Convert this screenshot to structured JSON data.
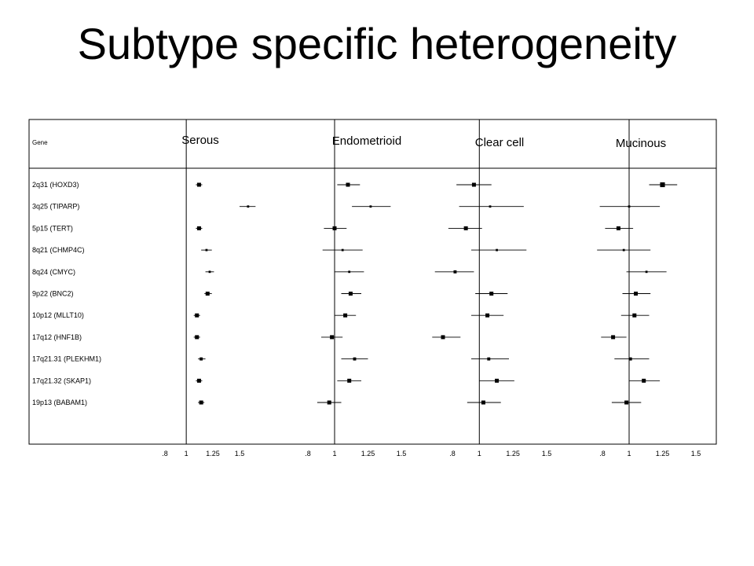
{
  "title": "Subtype specific heterogeneity",
  "chart_data": {
    "type": "forest",
    "gene_header": "Gene",
    "genes": [
      "2q31 (HOXD3)",
      "3q25 (TIPARP)",
      "5p15 (TERT)",
      "8q21 (CHMP4C)",
      "8q24 (CMYC)",
      "9p22 (BNC2)",
      "10p12 (MLLT10)",
      "17q12 (HNF1B)",
      "17q21.31 (PLEKHM1)",
      "17q21.32 (SKAP1)",
      "19p13 (BABAM1)"
    ],
    "x_ticks": [
      ".8",
      "1",
      "1.25",
      "1.5"
    ],
    "x_tick_values": [
      0.8,
      1.0,
      1.25,
      1.5
    ],
    "reference_line": 1,
    "panels": [
      {
        "name": "Serous",
        "points": [
          {
            "est": 1.12,
            "lo": 1.09,
            "hi": 1.15,
            "w": 2
          },
          {
            "est": 1.58,
            "lo": 1.5,
            "hi": 1.65,
            "w": 1
          },
          {
            "est": 1.12,
            "lo": 1.09,
            "hi": 1.15,
            "w": 2
          },
          {
            "est": 1.19,
            "lo": 1.14,
            "hi": 1.24,
            "w": 1
          },
          {
            "est": 1.22,
            "lo": 1.18,
            "hi": 1.26,
            "w": 1
          },
          {
            "est": 1.2,
            "lo": 1.17,
            "hi": 1.24,
            "w": 2
          },
          {
            "est": 1.1,
            "lo": 1.07,
            "hi": 1.13,
            "w": 2
          },
          {
            "est": 1.1,
            "lo": 1.07,
            "hi": 1.13,
            "w": 2
          },
          {
            "est": 1.14,
            "lo": 1.11,
            "hi": 1.18,
            "w": 1.5
          },
          {
            "est": 1.12,
            "lo": 1.09,
            "hi": 1.15,
            "w": 2
          },
          {
            "est": 1.14,
            "lo": 1.11,
            "hi": 1.17,
            "w": 2
          }
        ]
      },
      {
        "name": "Endometrioid",
        "points": [
          {
            "est": 1.1,
            "lo": 1.02,
            "hi": 1.19,
            "w": 2
          },
          {
            "est": 1.27,
            "lo": 1.13,
            "hi": 1.42,
            "w": 1
          },
          {
            "est": 1.0,
            "lo": 0.92,
            "hi": 1.09,
            "w": 2
          },
          {
            "est": 1.06,
            "lo": 0.91,
            "hi": 1.21,
            "w": 1
          },
          {
            "est": 1.11,
            "lo": 1.0,
            "hi": 1.22,
            "w": 1
          },
          {
            "est": 1.12,
            "lo": 1.05,
            "hi": 1.2,
            "w": 2
          },
          {
            "est": 1.08,
            "lo": 1.0,
            "hi": 1.16,
            "w": 2
          },
          {
            "est": 0.98,
            "lo": 0.9,
            "hi": 1.06,
            "w": 2
          },
          {
            "est": 1.15,
            "lo": 1.05,
            "hi": 1.25,
            "w": 1.5
          },
          {
            "est": 1.11,
            "lo": 1.02,
            "hi": 1.2,
            "w": 2
          },
          {
            "est": 0.96,
            "lo": 0.87,
            "hi": 1.05,
            "w": 2
          }
        ]
      },
      {
        "name": "Clear cell",
        "points": [
          {
            "est": 0.96,
            "lo": 0.83,
            "hi": 1.09,
            "w": 2
          },
          {
            "est": 1.08,
            "lo": 0.85,
            "hi": 1.33,
            "w": 1
          },
          {
            "est": 0.9,
            "lo": 0.77,
            "hi": 1.02,
            "w": 2
          },
          {
            "est": 1.13,
            "lo": 0.94,
            "hi": 1.35,
            "w": 1
          },
          {
            "est": 0.82,
            "lo": 0.67,
            "hi": 0.96,
            "w": 1.5
          },
          {
            "est": 1.09,
            "lo": 0.97,
            "hi": 1.21,
            "w": 2
          },
          {
            "est": 1.06,
            "lo": 0.94,
            "hi": 1.18,
            "w": 2
          },
          {
            "est": 0.73,
            "lo": 0.65,
            "hi": 0.86,
            "w": 2
          },
          {
            "est": 1.07,
            "lo": 0.94,
            "hi": 1.22,
            "w": 1.5
          },
          {
            "est": 1.13,
            "lo": 1.0,
            "hi": 1.26,
            "w": 2
          },
          {
            "est": 1.03,
            "lo": 0.91,
            "hi": 1.16,
            "w": 2
          }
        ]
      },
      {
        "name": "Mucinous",
        "points": [
          {
            "est": 1.25,
            "lo": 1.15,
            "hi": 1.36,
            "w": 2.5
          },
          {
            "est": 1.0,
            "lo": 0.78,
            "hi": 1.23,
            "w": 1
          },
          {
            "est": 0.92,
            "lo": 0.82,
            "hi": 1.03,
            "w": 2
          },
          {
            "est": 0.96,
            "lo": 0.76,
            "hi": 1.16,
            "w": 1
          },
          {
            "est": 1.13,
            "lo": 0.98,
            "hi": 1.28,
            "w": 1
          },
          {
            "est": 1.05,
            "lo": 0.95,
            "hi": 1.16,
            "w": 2
          },
          {
            "est": 1.04,
            "lo": 0.94,
            "hi": 1.15,
            "w": 2
          },
          {
            "est": 0.88,
            "lo": 0.79,
            "hi": 0.98,
            "w": 2
          },
          {
            "est": 1.01,
            "lo": 0.89,
            "hi": 1.15,
            "w": 1.5
          },
          {
            "est": 1.11,
            "lo": 1.0,
            "hi": 1.23,
            "w": 2
          },
          {
            "est": 0.98,
            "lo": 0.87,
            "hi": 1.09,
            "w": 2
          }
        ]
      }
    ]
  }
}
